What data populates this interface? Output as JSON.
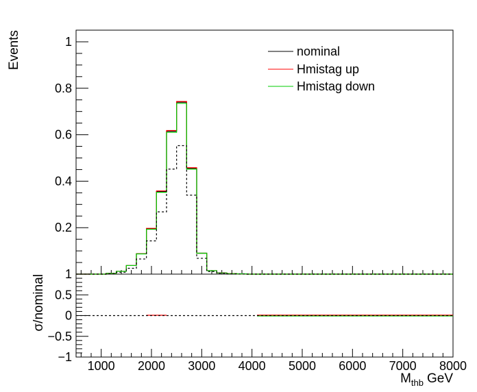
{
  "chart_data": [
    {
      "type": "line",
      "panel": "upper",
      "ylabel": "Events",
      "ylim": [
        0,
        1.05
      ],
      "xlim": [
        500,
        8000
      ],
      "y_ticks": [
        {
          "value": 0.2,
          "label": "0.2"
        },
        {
          "value": 0.4,
          "label": "0.4"
        },
        {
          "value": 0.6,
          "label": "0.6"
        },
        {
          "value": 0.8,
          "label": "0.8"
        },
        {
          "value": 1.0,
          "label": "1"
        }
      ],
      "bin_edges": [
        500,
        700,
        900,
        1100,
        1300,
        1500,
        1700,
        1900,
        2100,
        2300,
        2500,
        2700,
        2900,
        3100,
        3300,
        3500,
        3700,
        3900,
        4100,
        8000
      ],
      "legend_position": "top-right",
      "series": [
        {
          "name": "nominal",
          "color": "#000000",
          "style": "solid",
          "values": [
            0,
            0,
            0,
            0.003,
            0.012,
            0.037,
            0.088,
            0.195,
            0.355,
            0.615,
            0.74,
            0.455,
            0.09,
            0.015,
            0.005,
            0.002,
            0.001,
            0,
            0
          ]
        },
        {
          "name": "Hmistag up",
          "color": "#ff0000",
          "style": "solid",
          "values": [
            0,
            0,
            0,
            0.003,
            0.012,
            0.037,
            0.088,
            0.197,
            0.358,
            0.618,
            0.743,
            0.458,
            0.09,
            0.015,
            0.005,
            0.002,
            0.001,
            0,
            0
          ]
        },
        {
          "name": "Hmistag down",
          "color": "#00cc00",
          "style": "solid",
          "values": [
            0,
            0,
            0,
            0.003,
            0.012,
            0.037,
            0.087,
            0.193,
            0.352,
            0.61,
            0.735,
            0.452,
            0.09,
            0.015,
            0.005,
            0.002,
            0.001,
            0,
            0
          ]
        },
        {
          "name": "",
          "color": "#000000",
          "style": "dashed",
          "values": [
            0,
            0,
            0,
            0.002,
            0.008,
            0.025,
            0.065,
            0.143,
            0.268,
            0.452,
            0.553,
            0.34,
            0.068,
            0.011,
            0.004,
            0.001,
            0.0005,
            0,
            0
          ]
        }
      ]
    },
    {
      "type": "line",
      "panel": "lower",
      "ylabel": "σ/nominal",
      "xlabel_main": "M",
      "xlabel_sub": "thb",
      "xlabel_unit": "GeV",
      "ylim": [
        -1,
        1
      ],
      "xlim": [
        500,
        8000
      ],
      "y_ticks": [
        {
          "value": -1,
          "label": "−1"
        },
        {
          "value": -0.5,
          "label": "−0.5"
        },
        {
          "value": 0,
          "label": "0"
        },
        {
          "value": 0.5,
          "label": "0.5"
        },
        {
          "value": 1,
          "label": "1"
        }
      ],
      "x_ticks": [
        {
          "value": 1000,
          "label": "1000"
        },
        {
          "value": 2000,
          "label": "2000"
        },
        {
          "value": 3000,
          "label": "3000"
        },
        {
          "value": 4000,
          "label": "4000"
        },
        {
          "value": 5000,
          "label": "5000"
        },
        {
          "value": 6000,
          "label": "6000"
        },
        {
          "value": 7000,
          "label": "7000"
        },
        {
          "value": 8000,
          "label": "8000"
        }
      ],
      "series": [
        {
          "name": "Hmistag up",
          "color": "#ff0000",
          "segments": [
            {
              "x": [
                1900,
                2300
              ],
              "y": 0.008
            },
            {
              "x": [
                4100,
                8000
              ],
              "y": 0.01
            }
          ]
        },
        {
          "name": "Hmistag down",
          "color": "#00cc00",
          "segments": [
            {
              "x": [
                4100,
                8000
              ],
              "y": -0.008
            }
          ]
        },
        {
          "name": "",
          "color": "#000000",
          "style": "dashed",
          "segments": [
            {
              "x": [
                500,
                8000
              ],
              "y": 0
            }
          ]
        }
      ]
    }
  ]
}
